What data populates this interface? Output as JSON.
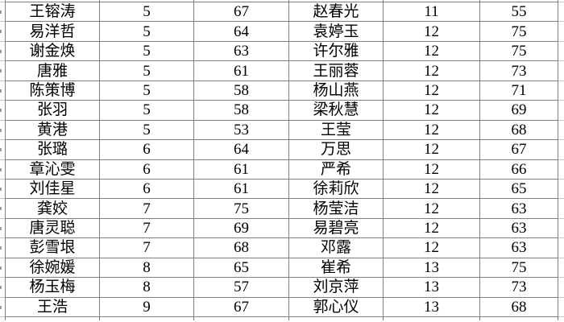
{
  "table": {
    "rows": [
      [
        "王镕涛",
        "5",
        "67",
        "赵春光",
        "11",
        "55"
      ],
      [
        "易洋哲",
        "5",
        "64",
        "袁婷玉",
        "12",
        "75"
      ],
      [
        "谢金焕",
        "5",
        "63",
        "许尔雅",
        "12",
        "75"
      ],
      [
        "唐雅",
        "5",
        "61",
        "王丽蓉",
        "12",
        "73"
      ],
      [
        "陈策博",
        "5",
        "58",
        "杨山燕",
        "12",
        "71"
      ],
      [
        "张羽",
        "5",
        "58",
        "梁秋慧",
        "12",
        "69"
      ],
      [
        "黄港",
        "5",
        "53",
        "王莹",
        "12",
        "68"
      ],
      [
        "张璐",
        "6",
        "64",
        "万思",
        "12",
        "67"
      ],
      [
        "章沁雯",
        "6",
        "61",
        "严希",
        "12",
        "66"
      ],
      [
        "刘佳星",
        "6",
        "61",
        "徐莉欣",
        "12",
        "65"
      ],
      [
        "龚姣",
        "7",
        "75",
        "杨莹洁",
        "12",
        "63"
      ],
      [
        "唐灵聪",
        "7",
        "69",
        "易碧亮",
        "12",
        "63"
      ],
      [
        "彭雪垠",
        "7",
        "68",
        "邓露",
        "12",
        "63"
      ],
      [
        "徐婉媛",
        "8",
        "65",
        "崔希",
        "13",
        "75"
      ],
      [
        "杨玉梅",
        "8",
        "57",
        "刘京萍",
        "13",
        "73"
      ],
      [
        "王浩",
        "9",
        "67",
        "郭心仪",
        "13",
        "68"
      ]
    ]
  },
  "colors": {
    "grid_line": "#7f7f7f",
    "grid_line_edge": "#c9c9c9",
    "text": "#000000",
    "background": "#ffffff"
  }
}
